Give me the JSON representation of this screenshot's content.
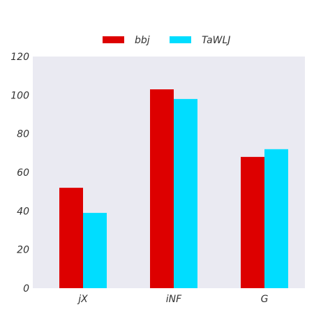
{
  "chart_data": {
    "type": "bar",
    "categories": [
      "jX",
      "iNF",
      "G"
    ],
    "series": [
      {
        "name": "bbj",
        "values": [
          52,
          103,
          68
        ],
        "color": "#dd0000"
      },
      {
        "name": "TaWLJ",
        "values": [
          39,
          98,
          72
        ],
        "color": "#00ddff"
      }
    ],
    "ylim": [
      0,
      120
    ],
    "yticks": [
      0,
      20,
      40,
      60,
      80,
      100,
      120
    ],
    "grid": false,
    "legend_position": "top-center",
    "plot_background": "#eaeaf2"
  }
}
